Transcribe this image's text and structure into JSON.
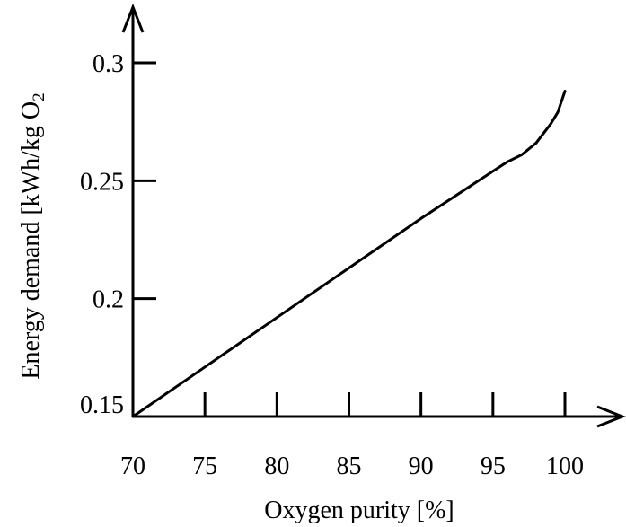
{
  "chart_data": {
    "type": "line",
    "title": "",
    "xlabel": "Oxygen purity [%]",
    "ylabel_main": "Energy demand [kWh/kg O",
    "ylabel_subscript": "2",
    "xlim": [
      70,
      100
    ],
    "ylim": [
      0.15,
      0.3
    ],
    "x_ticks": [
      70,
      75,
      80,
      85,
      90,
      95,
      100
    ],
    "x_tick_labels": [
      "70",
      "75",
      "80",
      "85",
      "90",
      "95",
      "100"
    ],
    "y_ticks": [
      0.15,
      0.2,
      0.25,
      0.3
    ],
    "y_tick_labels": [
      "0.15",
      "0.2",
      "0.25",
      "0.3"
    ],
    "grid": false,
    "series": [
      {
        "x": [
          70,
          75,
          80,
          85,
          90,
          95,
          96,
          97,
          98,
          99,
          99.5,
          100
        ],
        "y": [
          0.15,
          0.171,
          0.192,
          0.213,
          0.234,
          0.254,
          0.258,
          0.261,
          0.266,
          0.274,
          0.279,
          0.288
        ]
      }
    ]
  }
}
